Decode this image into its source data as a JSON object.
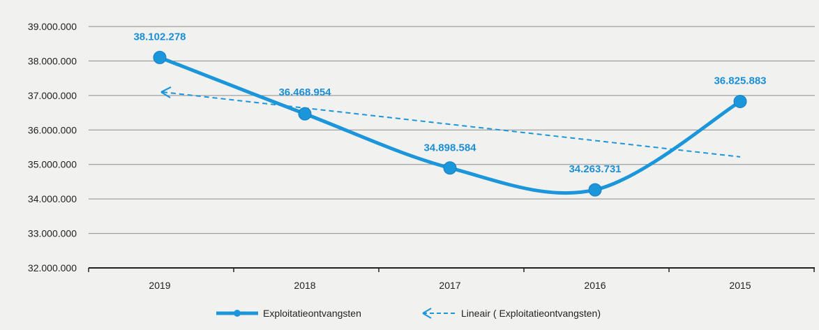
{
  "chart_data": {
    "type": "line",
    "categories": [
      "2019",
      "2018",
      "2017",
      "2016",
      "2015"
    ],
    "series": [
      {
        "name": "Exploitatieontvangsten",
        "values": [
          38102278,
          36468954,
          34898584,
          34263731,
          36825883
        ],
        "value_labels": [
          "38.102.278",
          "36.468.954",
          "34.898.584",
          "34.263.731",
          "36.825.883"
        ],
        "style": "smooth solid line with markers",
        "color": "#1b96db"
      },
      {
        "name": "Lineair ( Exploitatieontvangsten)",
        "values": [
          37100000,
          36630000,
          36160000,
          35690000,
          35220000
        ],
        "style": "dashed linear trendline with arrow",
        "color": "#1b96db"
      }
    ],
    "y_ticks": [
      32000000,
      33000000,
      34000000,
      35000000,
      36000000,
      37000000,
      38000000,
      39000000
    ],
    "y_tick_labels": [
      "32.000.000",
      "33.000.000",
      "34.000.000",
      "35.000.000",
      "36.000.000",
      "37.000.000",
      "38.000.000",
      "39.000.000"
    ],
    "ylim": [
      32000000,
      39000000
    ],
    "title": "",
    "xlabel": "",
    "ylabel": "",
    "grid": "horizontal",
    "legend": "bottom-center"
  }
}
